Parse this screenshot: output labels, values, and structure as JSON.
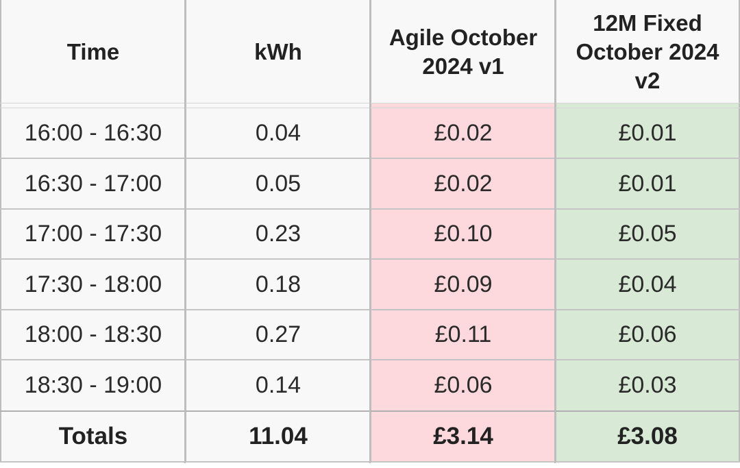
{
  "columns": [
    "Time",
    "kWh",
    "Agile October 2024 v1",
    "12M Fixed October 2024 v2"
  ],
  "rows": [
    [
      "16:00 - 16:30",
      "0.04",
      "£0.02",
      "£0.01"
    ],
    [
      "16:30 - 17:00",
      "0.05",
      "£0.02",
      "£0.01"
    ],
    [
      "17:00 - 17:30",
      "0.23",
      "£0.10",
      "£0.05"
    ],
    [
      "17:30 - 18:00",
      "0.18",
      "£0.09",
      "£0.04"
    ],
    [
      "18:00 - 18:30",
      "0.27",
      "£0.11",
      "£0.06"
    ],
    [
      "18:30 - 19:00",
      "0.14",
      "£0.06",
      "£0.03"
    ]
  ],
  "totals": [
    "Totals",
    "11.04",
    "£3.14",
    "£3.08"
  ],
  "colors": {
    "agile_bg": "#fdd9dd",
    "fixed_bg": "#d8ead6",
    "cell_bg": "#f8f8f8",
    "border": "#bdbdbd"
  }
}
